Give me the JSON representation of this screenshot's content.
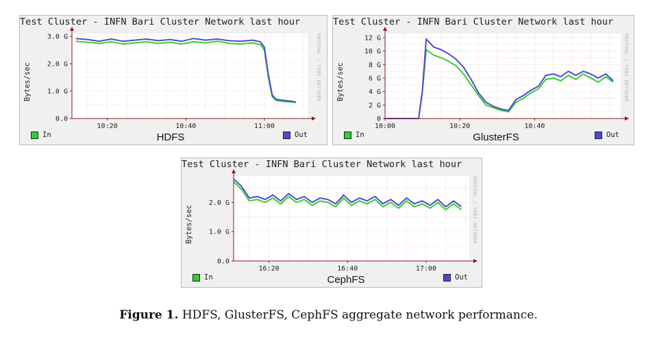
{
  "figure": {
    "caption_label": "Figure 1.",
    "caption_text": "HDFS, GlusterFS, CephFS aggregate network performance."
  },
  "colors": {
    "in": "#33cc33",
    "out": "#4c4ccc",
    "grid": "#e8a8a8",
    "axis": "#8b1a1a",
    "panel": "#f0f0f0"
  },
  "chart_data": [
    {
      "type": "line",
      "panel_label": "HDFS",
      "title": "Test Cluster - INFN Bari Cluster Network last hour",
      "ylabel": "Bytes/sec",
      "watermark": "RRDTOOL / TOBI OETIKER",
      "ylim": [
        0,
        3.1
      ],
      "xlim": [
        "10:11",
        "11:11"
      ],
      "x_ticks": [
        "10:20",
        "10:40",
        "11:00"
      ],
      "y_ticks": [
        "0.0",
        "1.0 G",
        "2.0 G",
        "3.0 G"
      ],
      "y_tick_values": [
        0,
        1,
        2,
        3
      ],
      "legend": [
        "In",
        "Out"
      ],
      "x": [
        "10:12",
        "10:15",
        "10:18",
        "10:21",
        "10:24",
        "10:27",
        "10:30",
        "10:33",
        "10:36",
        "10:39",
        "10:42",
        "10:45",
        "10:48",
        "10:51",
        "10:54",
        "10:57",
        "10:59",
        "11:00",
        "11:01",
        "11:02",
        "11:03",
        "11:05",
        "11:07",
        "11:08"
      ],
      "series": [
        {
          "name": "In",
          "values": [
            2.82,
            2.78,
            2.74,
            2.8,
            2.72,
            2.76,
            2.8,
            2.74,
            2.78,
            2.72,
            2.8,
            2.76,
            2.82,
            2.74,
            2.72,
            2.76,
            2.7,
            2.5,
            1.5,
            0.8,
            0.66,
            0.62,
            0.6,
            0.58
          ]
        },
        {
          "name": "Out",
          "values": [
            2.92,
            2.88,
            2.82,
            2.9,
            2.82,
            2.86,
            2.9,
            2.84,
            2.88,
            2.82,
            2.92,
            2.86,
            2.9,
            2.84,
            2.82,
            2.86,
            2.8,
            2.6,
            1.6,
            0.85,
            0.7,
            0.66,
            0.63,
            0.6
          ]
        }
      ]
    },
    {
      "type": "line",
      "panel_label": "GlusterFS",
      "title": "Test Cluster - INFN Bari Cluster Network last hour",
      "ylabel": "Bytes/sec",
      "watermark": "RRDTOOL / TOBI OETIKER",
      "ylim": [
        0,
        12.6
      ],
      "xlim": [
        "10:00",
        "11:03"
      ],
      "x_ticks": [
        "10:00",
        "10:20",
        "10:40"
      ],
      "y_ticks": [
        "0",
        "2 G",
        "4 G",
        "6 G",
        "8 G",
        "10 G",
        "12 G"
      ],
      "y_tick_values": [
        0,
        2,
        4,
        6,
        8,
        10,
        12
      ],
      "legend": [
        "In",
        "Out"
      ],
      "x": [
        "10:00",
        "10:05",
        "10:09",
        "10:10",
        "10:11",
        "10:13",
        "10:15",
        "10:17",
        "10:19",
        "10:21",
        "10:23",
        "10:25",
        "10:27",
        "10:29",
        "10:31",
        "10:33",
        "10:35",
        "10:37",
        "10:39",
        "10:41",
        "10:43",
        "10:45",
        "10:47",
        "10:49",
        "10:51",
        "10:53",
        "10:55",
        "10:57",
        "10:59",
        "11:01"
      ],
      "series": [
        {
          "name": "In",
          "values": [
            0,
            0,
            0,
            4,
            10.2,
            9.4,
            9.0,
            8.5,
            7.8,
            6.6,
            5.0,
            3.4,
            2.0,
            1.6,
            1.2,
            1.0,
            2.4,
            3.0,
            3.8,
            4.4,
            5.8,
            6.0,
            5.6,
            6.4,
            5.8,
            6.6,
            6.0,
            5.4,
            6.2,
            5.4
          ]
        },
        {
          "name": "Out",
          "values": [
            0,
            0,
            0,
            4.2,
            11.8,
            10.6,
            10.2,
            9.6,
            8.8,
            7.6,
            5.8,
            3.8,
            2.4,
            1.8,
            1.4,
            1.2,
            2.8,
            3.4,
            4.2,
            4.8,
            6.4,
            6.6,
            6.2,
            7.0,
            6.4,
            7.0,
            6.6,
            6.0,
            6.6,
            5.6
          ]
        }
      ]
    },
    {
      "type": "line",
      "panel_label": "CephFS",
      "title": "Test Cluster - INFN Bari Cluster Network last hour",
      "ylabel": "Bytes/sec",
      "watermark": "RRDTOOL / TOBI OETIKER",
      "ylim": [
        0,
        2.9
      ],
      "xlim": [
        "16:11",
        "17:11"
      ],
      "x_ticks": [
        "16:20",
        "16:40",
        "17:00"
      ],
      "y_ticks": [
        "0.0",
        "1.0 G",
        "2.0 G"
      ],
      "y_tick_values": [
        0,
        1,
        2
      ],
      "legend": [
        "In",
        "Out"
      ],
      "x": [
        "16:11",
        "16:13",
        "16:15",
        "16:17",
        "16:19",
        "16:21",
        "16:23",
        "16:25",
        "16:27",
        "16:29",
        "16:31",
        "16:33",
        "16:35",
        "16:37",
        "16:39",
        "16:41",
        "16:43",
        "16:45",
        "16:47",
        "16:49",
        "16:51",
        "16:53",
        "16:55",
        "16:57",
        "16:59",
        "17:01",
        "17:03",
        "17:05",
        "17:07",
        "17:09"
      ],
      "series": [
        {
          "name": "In",
          "values": [
            2.7,
            2.45,
            2.05,
            2.1,
            2.0,
            2.15,
            1.95,
            2.2,
            2.0,
            2.1,
            1.9,
            2.05,
            2.0,
            1.85,
            2.15,
            1.9,
            2.05,
            1.95,
            2.1,
            1.85,
            2.0,
            1.8,
            2.05,
            1.85,
            1.95,
            1.8,
            2.0,
            1.75,
            1.95,
            1.75
          ]
        },
        {
          "name": "Out",
          "values": [
            2.8,
            2.55,
            2.15,
            2.2,
            2.1,
            2.25,
            2.05,
            2.3,
            2.1,
            2.2,
            2.0,
            2.15,
            2.1,
            1.95,
            2.25,
            2.0,
            2.15,
            2.05,
            2.2,
            1.95,
            2.1,
            1.9,
            2.15,
            1.95,
            2.05,
            1.9,
            2.1,
            1.85,
            2.05,
            1.85
          ]
        }
      ]
    }
  ]
}
